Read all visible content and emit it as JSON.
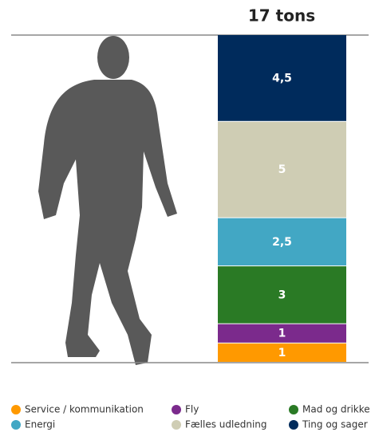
{
  "chart_data": {
    "type": "stacked-bar",
    "title": "17 tons",
    "series": [
      {
        "name": "Service / kommunikation",
        "color": "#ff9900",
        "values": [
          1
        ]
      },
      {
        "name": "Fly",
        "color": "#7b2a8c",
        "values": [
          1
        ]
      },
      {
        "name": "Mad og drikke",
        "color": "#2a7a25",
        "values": [
          3
        ]
      },
      {
        "name": "Energi",
        "color": "#42a7c4",
        "values": [
          2.5
        ],
        "value_labels": [
          "2,5"
        ]
      },
      {
        "name": "Fælles udledning",
        "color": "#cfcdb4",
        "values": [
          5
        ]
      },
      {
        "name": "Ting og sager",
        "color": "#002b5c",
        "values": [
          4.5
        ],
        "value_labels": [
          "4,5"
        ]
      }
    ]
  }
}
